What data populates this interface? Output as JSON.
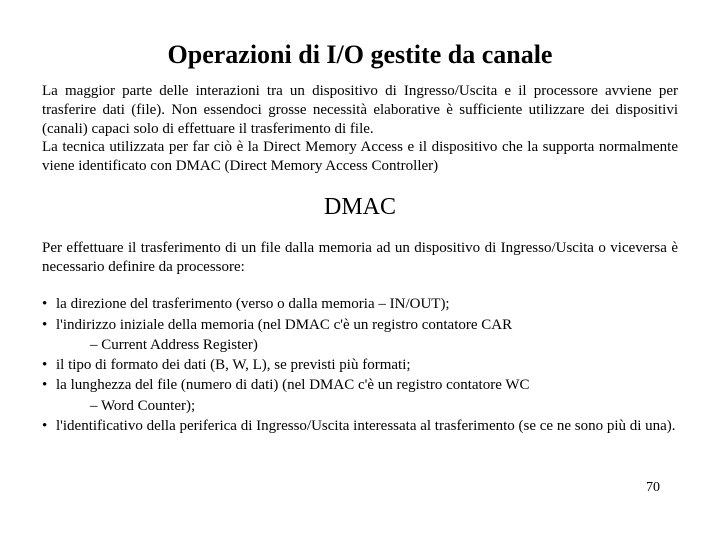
{
  "title": "Operazioni di I/O gestite da canale",
  "para1": "La maggior parte delle interazioni tra un dispositivo di Ingresso/Uscita e il processore avviene per trasferire dati (file). Non essendoci grosse necessità elaborative è sufficiente utilizzare dei dispositivi (canali) capaci solo di effettuare il trasferimento di file.",
  "para1b": "La tecnica utilizzata per far ciò è la Direct Memory Access e il dispositivo che la supporta normalmente viene identificato con DMAC (Direct Memory Access Controller)",
  "subheading": "DMAC",
  "intro2": "Per effettuare il trasferimento di un file dalla memoria ad un dispositivo di Ingresso/Uscita o viceversa è necessario definire da processore:",
  "bullets": {
    "b1": "la direzione del trasferimento (verso o dalla memoria – IN/OUT);",
    "b2": "l'indirizzo iniziale della memoria (nel DMAC c'è un registro contatore CAR",
    "b2sub": "– Current Address Register)",
    "b3": "il tipo di formato dei dati (B, W, L), se previsti più formati;",
    "b4": "la lunghezza del file (numero di dati) (nel DMAC c'è un registro contatore WC",
    "b4sub": "– Word Counter);",
    "b5": "l'identificativo della periferica di Ingresso/Uscita interessata al trasferimento (se ce ne sono più di una)."
  },
  "pagenum": "70",
  "bullet_glyph": "•"
}
